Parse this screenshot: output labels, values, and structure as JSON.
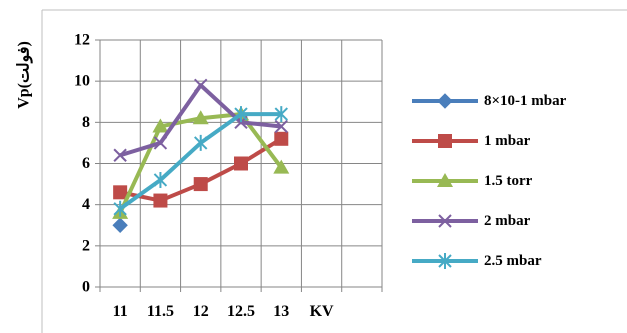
{
  "chart_data": {
    "type": "line",
    "ylabel": "Vp(فولت)",
    "x_unit_label": "KV",
    "x": [
      11,
      11.5,
      12,
      12.5,
      13
    ],
    "x_tick_labels": [
      "11",
      "11.5",
      "12",
      "12.5",
      "13"
    ],
    "ylim": [
      0,
      12
    ],
    "y_ticks": [
      0,
      2,
      4,
      6,
      8,
      10,
      12
    ],
    "grid": true,
    "legend_position": "right",
    "series": [
      {
        "name": "8×10-1  mbar",
        "color": "#4a7ebb",
        "marker": "diamond",
        "values": [
          3.0,
          null,
          null,
          null,
          null
        ]
      },
      {
        "name": "1  mbar",
        "color": "#be4b48",
        "marker": "square",
        "values": [
          4.6,
          4.2,
          5.0,
          6.0,
          7.2
        ]
      },
      {
        "name": "1.5  torr",
        "color": "#98b954",
        "marker": "triangle",
        "values": [
          3.6,
          7.8,
          8.2,
          8.4,
          5.8
        ]
      },
      {
        "name": "2  mbar",
        "color": "#7d60a0",
        "marker": "x",
        "values": [
          6.4,
          7.0,
          9.8,
          8.0,
          7.8
        ]
      },
      {
        "name": "2.5  mbar",
        "color": "#46aac5",
        "marker": "star",
        "values": [
          3.8,
          5.2,
          7.0,
          8.4,
          8.4
        ]
      }
    ]
  }
}
